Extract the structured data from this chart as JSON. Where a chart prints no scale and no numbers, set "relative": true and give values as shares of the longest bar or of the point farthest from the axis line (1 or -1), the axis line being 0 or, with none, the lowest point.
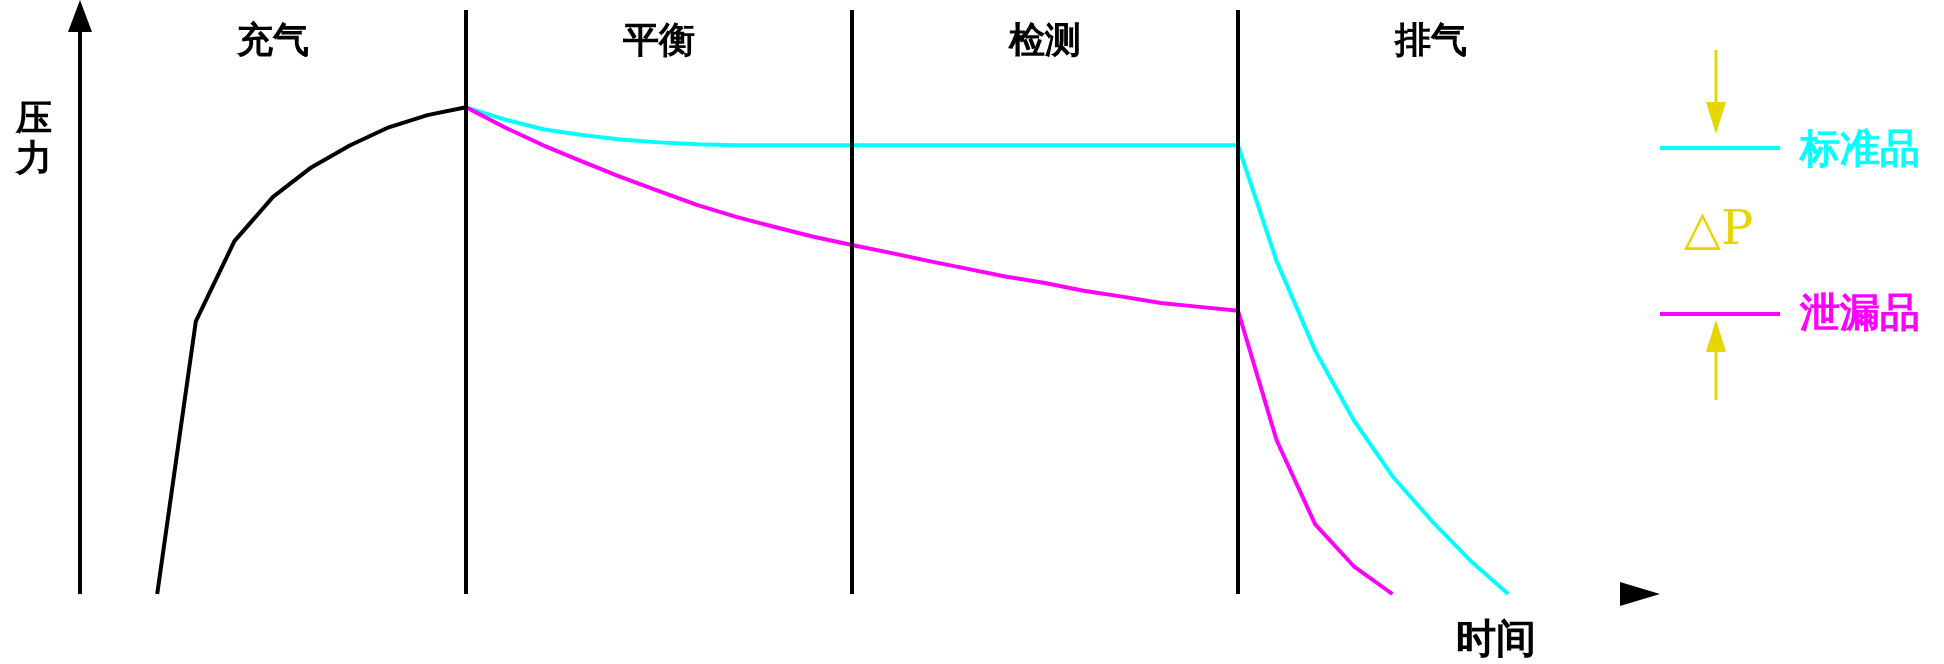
{
  "chart_data": {
    "type": "line",
    "relative": true,
    "xlabel": "时间",
    "ylabel": "压力",
    "categories": [
      null,
      null,
      null,
      null,
      null,
      null,
      null,
      null,
      null,
      null,
      null,
      null,
      null,
      null,
      null,
      null,
      null,
      null,
      null,
      null,
      null,
      null,
      null,
      null,
      null,
      null,
      null,
      null,
      null,
      null,
      null,
      null,
      null,
      null,
      null,
      null,
      null,
      null,
      null,
      null,
      null
    ],
    "series": [
      {
        "color": "#000000",
        "values": [
          null,
          null,
          0,
          0.56,
          0.725,
          0.816,
          0.877,
          0.922,
          0.959,
          0.984,
          1,
          null,
          null,
          null,
          null,
          null,
          null,
          null,
          null,
          null,
          null,
          null,
          null,
          null,
          null,
          null,
          null,
          null,
          null,
          null,
          null,
          null,
          null,
          null,
          null,
          null,
          null,
          null,
          null,
          null,
          null
        ]
      },
      {
        "name": "标准品",
        "color": "#00ffff",
        "values": [
          null,
          null,
          null,
          null,
          null,
          null,
          null,
          null,
          null,
          null,
          1,
          0.975,
          0.955,
          0.943,
          0.934,
          0.928,
          0.924,
          0.922,
          0.922,
          0.922,
          0.922,
          0.922,
          0.922,
          0.922,
          0.922,
          0.922,
          0.922,
          0.922,
          0.922,
          0.922,
          0.922,
          0.684,
          0.5,
          0.357,
          0.242,
          0.152,
          0.07,
          0,
          null,
          null,
          null
        ]
      },
      {
        "name": "泄漏品",
        "color": "#ff00ff",
        "values": [
          null,
          null,
          null,
          null,
          null,
          null,
          null,
          null,
          null,
          null,
          1,
          0.959,
          0.922,
          0.889,
          0.857,
          0.828,
          0.799,
          0.775,
          0.754,
          0.734,
          0.717,
          0.701,
          0.684,
          0.668,
          0.652,
          0.639,
          0.623,
          0.611,
          0.598,
          0.59,
          0.582,
          0.316,
          0.143,
          0.057,
          0,
          null,
          null,
          null,
          null,
          null,
          null
        ]
      }
    ],
    "annotations": [
      "充气",
      "平衡",
      "检测",
      "排气",
      "△P"
    ],
    "legend": "right",
    "marker": "none",
    "line_style": "solid"
  }
}
